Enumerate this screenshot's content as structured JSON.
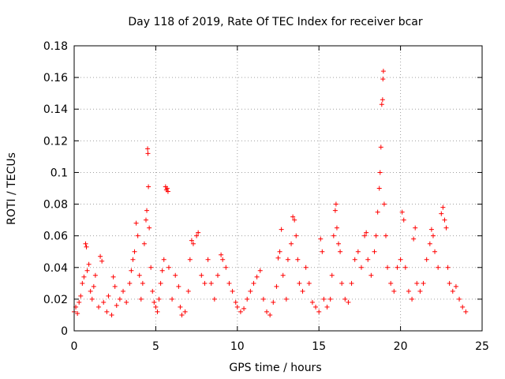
{
  "chart_data": {
    "type": "scatter",
    "title": "Day 118 of 2019, Rate Of TEC Index for receiver bcar",
    "xlabel": "GPS time / hours",
    "ylabel": "ROTI / TECUs",
    "xlim": [
      0,
      25
    ],
    "ylim": [
      0,
      0.18
    ],
    "xticks": [
      "0",
      "5",
      "10",
      "15",
      "20",
      "25"
    ],
    "yticks": [
      "0",
      "0.02",
      "0.04",
      "0.06",
      "0.08",
      "0.1",
      "0.12",
      "0.14",
      "0.16",
      "0.18"
    ],
    "grid": true,
    "marker": "+",
    "color": "#ff0000",
    "series": [
      {
        "name": "ROTI",
        "points": [
          [
            0.0,
            0.012
          ],
          [
            0.1,
            0.015
          ],
          [
            0.2,
            0.011
          ],
          [
            0.3,
            0.018
          ],
          [
            0.4,
            0.022
          ],
          [
            0.5,
            0.03
          ],
          [
            0.6,
            0.034
          ],
          [
            0.7,
            0.055
          ],
          [
            0.75,
            0.053
          ],
          [
            0.8,
            0.038
          ],
          [
            0.9,
            0.042
          ],
          [
            1.0,
            0.025
          ],
          [
            1.1,
            0.02
          ],
          [
            1.2,
            0.028
          ],
          [
            1.3,
            0.035
          ],
          [
            1.5,
            0.015
          ],
          [
            1.6,
            0.047
          ],
          [
            1.7,
            0.044
          ],
          [
            1.8,
            0.018
          ],
          [
            2.0,
            0.012
          ],
          [
            2.1,
            0.022
          ],
          [
            2.3,
            0.01
          ],
          [
            2.4,
            0.034
          ],
          [
            2.5,
            0.028
          ],
          [
            2.6,
            0.016
          ],
          [
            2.8,
            0.02
          ],
          [
            3.0,
            0.025
          ],
          [
            3.2,
            0.018
          ],
          [
            3.4,
            0.03
          ],
          [
            3.5,
            0.038
          ],
          [
            3.6,
            0.045
          ],
          [
            3.7,
            0.05
          ],
          [
            3.8,
            0.068
          ],
          [
            3.9,
            0.06
          ],
          [
            4.0,
            0.035
          ],
          [
            4.1,
            0.02
          ],
          [
            4.2,
            0.03
          ],
          [
            4.3,
            0.055
          ],
          [
            4.4,
            0.07
          ],
          [
            4.45,
            0.076
          ],
          [
            4.5,
            0.115
          ],
          [
            4.52,
            0.112
          ],
          [
            4.55,
            0.091
          ],
          [
            4.6,
            0.065
          ],
          [
            4.7,
            0.04
          ],
          [
            4.8,
            0.025
          ],
          [
            4.9,
            0.018
          ],
          [
            5.0,
            0.015
          ],
          [
            5.1,
            0.012
          ],
          [
            5.2,
            0.02
          ],
          [
            5.3,
            0.03
          ],
          [
            5.4,
            0.038
          ],
          [
            5.5,
            0.045
          ],
          [
            5.6,
            0.091
          ],
          [
            5.65,
            0.089
          ],
          [
            5.7,
            0.09
          ],
          [
            5.75,
            0.088
          ],
          [
            5.8,
            0.04
          ],
          [
            6.0,
            0.02
          ],
          [
            6.2,
            0.035
          ],
          [
            6.4,
            0.028
          ],
          [
            6.5,
            0.015
          ],
          [
            6.6,
            0.01
          ],
          [
            6.8,
            0.012
          ],
          [
            7.0,
            0.025
          ],
          [
            7.1,
            0.045
          ],
          [
            7.2,
            0.057
          ],
          [
            7.3,
            0.055
          ],
          [
            7.5,
            0.06
          ],
          [
            7.6,
            0.062
          ],
          [
            7.8,
            0.035
          ],
          [
            8.0,
            0.03
          ],
          [
            8.2,
            0.045
          ],
          [
            8.4,
            0.03
          ],
          [
            8.6,
            0.02
          ],
          [
            8.8,
            0.035
          ],
          [
            9.0,
            0.048
          ],
          [
            9.1,
            0.045
          ],
          [
            9.3,
            0.04
          ],
          [
            9.5,
            0.03
          ],
          [
            9.7,
            0.025
          ],
          [
            9.9,
            0.018
          ],
          [
            10.0,
            0.015
          ],
          [
            10.2,
            0.012
          ],
          [
            10.4,
            0.014
          ],
          [
            10.6,
            0.02
          ],
          [
            10.8,
            0.025
          ],
          [
            11.0,
            0.03
          ],
          [
            11.2,
            0.034
          ],
          [
            11.4,
            0.038
          ],
          [
            11.6,
            0.02
          ],
          [
            11.8,
            0.012
          ],
          [
            12.0,
            0.01
          ],
          [
            12.2,
            0.018
          ],
          [
            12.4,
            0.028
          ],
          [
            12.5,
            0.046
          ],
          [
            12.6,
            0.05
          ],
          [
            12.7,
            0.064
          ],
          [
            12.8,
            0.035
          ],
          [
            13.0,
            0.02
          ],
          [
            13.1,
            0.045
          ],
          [
            13.3,
            0.055
          ],
          [
            13.4,
            0.072
          ],
          [
            13.5,
            0.07
          ],
          [
            13.6,
            0.06
          ],
          [
            13.7,
            0.045
          ],
          [
            13.8,
            0.03
          ],
          [
            14.0,
            0.025
          ],
          [
            14.2,
            0.04
          ],
          [
            14.4,
            0.03
          ],
          [
            14.6,
            0.018
          ],
          [
            14.8,
            0.015
          ],
          [
            15.0,
            0.012
          ],
          [
            15.1,
            0.058
          ],
          [
            15.2,
            0.05
          ],
          [
            15.3,
            0.02
          ],
          [
            15.5,
            0.015
          ],
          [
            15.7,
            0.02
          ],
          [
            15.8,
            0.035
          ],
          [
            15.9,
            0.06
          ],
          [
            16.0,
            0.076
          ],
          [
            16.05,
            0.08
          ],
          [
            16.1,
            0.065
          ],
          [
            16.2,
            0.055
          ],
          [
            16.3,
            0.05
          ],
          [
            16.4,
            0.03
          ],
          [
            16.6,
            0.02
          ],
          [
            16.8,
            0.018
          ],
          [
            17.0,
            0.03
          ],
          [
            17.2,
            0.045
          ],
          [
            17.4,
            0.05
          ],
          [
            17.6,
            0.04
          ],
          [
            17.8,
            0.06
          ],
          [
            17.9,
            0.062
          ],
          [
            18.0,
            0.045
          ],
          [
            18.2,
            0.035
          ],
          [
            18.4,
            0.05
          ],
          [
            18.5,
            0.06
          ],
          [
            18.6,
            0.075
          ],
          [
            18.7,
            0.09
          ],
          [
            18.75,
            0.1
          ],
          [
            18.8,
            0.116
          ],
          [
            18.85,
            0.143
          ],
          [
            18.9,
            0.146
          ],
          [
            18.92,
            0.159
          ],
          [
            18.95,
            0.164
          ],
          [
            19.0,
            0.08
          ],
          [
            19.1,
            0.06
          ],
          [
            19.2,
            0.04
          ],
          [
            19.4,
            0.03
          ],
          [
            19.6,
            0.025
          ],
          [
            19.8,
            0.04
          ],
          [
            20.0,
            0.045
          ],
          [
            20.1,
            0.075
          ],
          [
            20.2,
            0.07
          ],
          [
            20.3,
            0.04
          ],
          [
            20.5,
            0.025
          ],
          [
            20.7,
            0.02
          ],
          [
            20.8,
            0.058
          ],
          [
            20.9,
            0.065
          ],
          [
            21.0,
            0.03
          ],
          [
            21.2,
            0.025
          ],
          [
            21.4,
            0.03
          ],
          [
            21.6,
            0.045
          ],
          [
            21.8,
            0.055
          ],
          [
            21.9,
            0.064
          ],
          [
            22.0,
            0.06
          ],
          [
            22.1,
            0.05
          ],
          [
            22.3,
            0.04
          ],
          [
            22.5,
            0.074
          ],
          [
            22.6,
            0.078
          ],
          [
            22.7,
            0.07
          ],
          [
            22.8,
            0.065
          ],
          [
            22.9,
            0.04
          ],
          [
            23.0,
            0.03
          ],
          [
            23.2,
            0.025
          ],
          [
            23.4,
            0.028
          ],
          [
            23.6,
            0.02
          ],
          [
            23.8,
            0.015
          ],
          [
            24.0,
            0.012
          ]
        ]
      }
    ]
  }
}
